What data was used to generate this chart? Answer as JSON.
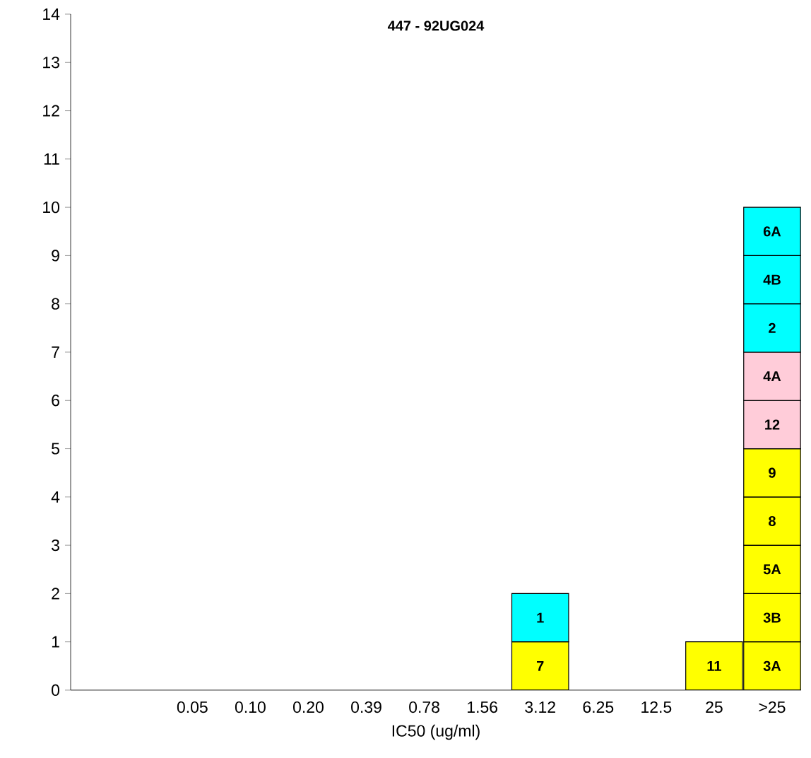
{
  "chart_data": {
    "type": "bar",
    "title": "447 - 92UG024",
    "xlabel": "IC50 (ug/ml)",
    "stacked": true,
    "categories": [
      "0.05",
      "0.10",
      "0.20",
      "0.39",
      "0.78",
      "1.56",
      "3.12",
      "6.25",
      "12.5",
      "25",
      ">25"
    ],
    "ylim": [
      0,
      14
    ],
    "yticks": [
      0,
      1,
      2,
      3,
      4,
      5,
      6,
      7,
      8,
      9,
      10,
      11,
      12,
      13,
      14
    ],
    "series": [
      {
        "values": [
          null,
          null,
          null,
          null,
          null,
          null,
          1,
          null,
          null,
          1,
          1
        ],
        "colors": [
          null,
          null,
          null,
          null,
          null,
          null,
          "#ffff00",
          null,
          null,
          "#ffff00",
          "#ffff00"
        ]
      },
      {
        "values": [
          null,
          null,
          null,
          null,
          null,
          null,
          1,
          null,
          null,
          null,
          1
        ],
        "colors": [
          null,
          null,
          null,
          null,
          null,
          null,
          "#00ffff",
          null,
          null,
          null,
          "#ffff00"
        ]
      },
      {
        "values": [
          null,
          null,
          null,
          null,
          null,
          null,
          null,
          null,
          null,
          null,
          1
        ],
        "colors": [
          null,
          null,
          null,
          null,
          null,
          null,
          null,
          null,
          null,
          null,
          "#ffff00"
        ]
      },
      {
        "values": [
          null,
          null,
          null,
          null,
          null,
          null,
          null,
          null,
          null,
          null,
          1
        ],
        "colors": [
          null,
          null,
          null,
          null,
          null,
          null,
          null,
          null,
          null,
          null,
          "#ffff00"
        ]
      },
      {
        "values": [
          null,
          null,
          null,
          null,
          null,
          null,
          null,
          null,
          null,
          null,
          1
        ],
        "colors": [
          null,
          null,
          null,
          null,
          null,
          null,
          null,
          null,
          null,
          null,
          "#ffff00"
        ]
      },
      {
        "values": [
          null,
          null,
          null,
          null,
          null,
          null,
          null,
          null,
          null,
          null,
          1
        ],
        "colors": [
          null,
          null,
          null,
          null,
          null,
          null,
          null,
          null,
          null,
          null,
          "#ffccd9"
        ]
      },
      {
        "values": [
          null,
          null,
          null,
          null,
          null,
          null,
          null,
          null,
          null,
          null,
          1
        ],
        "colors": [
          null,
          null,
          null,
          null,
          null,
          null,
          null,
          null,
          null,
          null,
          "#ffccd9"
        ]
      },
      {
        "values": [
          null,
          null,
          null,
          null,
          null,
          null,
          null,
          null,
          null,
          null,
          1
        ],
        "colors": [
          null,
          null,
          null,
          null,
          null,
          null,
          null,
          null,
          null,
          null,
          "#00ffff"
        ]
      },
      {
        "values": [
          null,
          null,
          null,
          null,
          null,
          null,
          null,
          null,
          null,
          null,
          1
        ],
        "colors": [
          null,
          null,
          null,
          null,
          null,
          null,
          null,
          null,
          null,
          null,
          "#00ffff"
        ]
      },
      {
        "values": [
          null,
          null,
          null,
          null,
          null,
          null,
          null,
          null,
          null,
          null,
          1
        ],
        "colors": [
          null,
          null,
          null,
          null,
          null,
          null,
          null,
          null,
          null,
          null,
          "#00ffff"
        ]
      }
    ],
    "grid": false,
    "annotations": [
      "7",
      "11",
      "3A",
      "1",
      "3B",
      "5A",
      "8",
      "9",
      "12",
      "4A",
      "2",
      "4B",
      "6A"
    ]
  }
}
